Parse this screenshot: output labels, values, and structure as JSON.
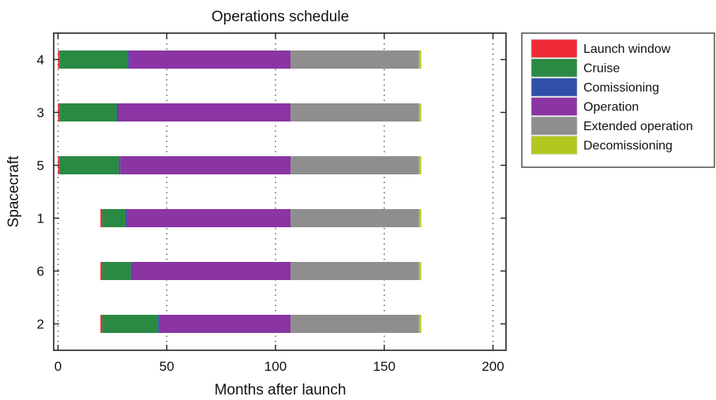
{
  "chart_data": {
    "type": "bar",
    "orientation": "horizontal",
    "stacked": true,
    "title": "Operations schedule",
    "xlabel": "Months after launch",
    "ylabel": "Spacecraft",
    "xlim": [
      -2,
      206
    ],
    "xticks": [
      0,
      50,
      100,
      150,
      200
    ],
    "grid": "vertical dotted",
    "legend_position": "top-right outside",
    "categories": [
      "4",
      "3",
      "5",
      "1",
      "6",
      "2"
    ],
    "phases": [
      {
        "name": "Launch window",
        "color": "#ee2a35"
      },
      {
        "name": "Cruise",
        "color": "#2a8a44"
      },
      {
        "name": "Comissioning",
        "color": "#2f4fa8"
      },
      {
        "name": "Operation",
        "color": "#8a35a3"
      },
      {
        "name": "Extended operation",
        "color": "#8e8e8e"
      },
      {
        "name": "Decomissioning",
        "color": "#b1c91f"
      }
    ],
    "bars": [
      {
        "spacecraft": "4",
        "segments": [
          {
            "phase": "Launch window",
            "start": 0,
            "end": 0.6
          },
          {
            "phase": "Cruise",
            "start": 0.6,
            "end": 32
          },
          {
            "phase": "Comissioning",
            "start": 32,
            "end": 32.6
          },
          {
            "phase": "Operation",
            "start": 32.6,
            "end": 107
          },
          {
            "phase": "Extended operation",
            "start": 107,
            "end": 166
          },
          {
            "phase": "Decomissioning",
            "start": 166,
            "end": 167
          }
        ]
      },
      {
        "spacecraft": "3",
        "segments": [
          {
            "phase": "Launch window",
            "start": 0,
            "end": 0.6
          },
          {
            "phase": "Cruise",
            "start": 0.6,
            "end": 27
          },
          {
            "phase": "Comissioning",
            "start": 27,
            "end": 27.6
          },
          {
            "phase": "Operation",
            "start": 27.6,
            "end": 107
          },
          {
            "phase": "Extended operation",
            "start": 107,
            "end": 166
          },
          {
            "phase": "Decomissioning",
            "start": 166,
            "end": 167
          }
        ]
      },
      {
        "spacecraft": "5",
        "segments": [
          {
            "phase": "Launch window",
            "start": 0,
            "end": 0.6
          },
          {
            "phase": "Cruise",
            "start": 0.6,
            "end": 28
          },
          {
            "phase": "Comissioning",
            "start": 28,
            "end": 28.6
          },
          {
            "phase": "Operation",
            "start": 28.6,
            "end": 107
          },
          {
            "phase": "Extended operation",
            "start": 107,
            "end": 166
          },
          {
            "phase": "Decomissioning",
            "start": 166,
            "end": 167
          }
        ]
      },
      {
        "spacecraft": "1",
        "segments": [
          {
            "phase": "Launch window",
            "start": 19.5,
            "end": 20.3
          },
          {
            "phase": "Cruise",
            "start": 20.3,
            "end": 31
          },
          {
            "phase": "Comissioning",
            "start": 31,
            "end": 31.6
          },
          {
            "phase": "Operation",
            "start": 31.6,
            "end": 107
          },
          {
            "phase": "Extended operation",
            "start": 107,
            "end": 166
          },
          {
            "phase": "Decomissioning",
            "start": 166,
            "end": 167
          }
        ]
      },
      {
        "spacecraft": "6",
        "segments": [
          {
            "phase": "Launch window",
            "start": 19.5,
            "end": 20.3
          },
          {
            "phase": "Cruise",
            "start": 20.3,
            "end": 33.5
          },
          {
            "phase": "Comissioning",
            "start": 33.5,
            "end": 34.1
          },
          {
            "phase": "Operation",
            "start": 34.1,
            "end": 107
          },
          {
            "phase": "Extended operation",
            "start": 107,
            "end": 166
          },
          {
            "phase": "Decomissioning",
            "start": 166,
            "end": 167
          }
        ]
      },
      {
        "spacecraft": "2",
        "segments": [
          {
            "phase": "Launch window",
            "start": 19.5,
            "end": 20.3
          },
          {
            "phase": "Cruise",
            "start": 20.3,
            "end": 46
          },
          {
            "phase": "Comissioning",
            "start": 46,
            "end": 46.6
          },
          {
            "phase": "Operation",
            "start": 46.6,
            "end": 107
          },
          {
            "phase": "Extended operation",
            "start": 107,
            "end": 166
          },
          {
            "phase": "Decomissioning",
            "start": 166,
            "end": 167
          }
        ]
      }
    ]
  }
}
